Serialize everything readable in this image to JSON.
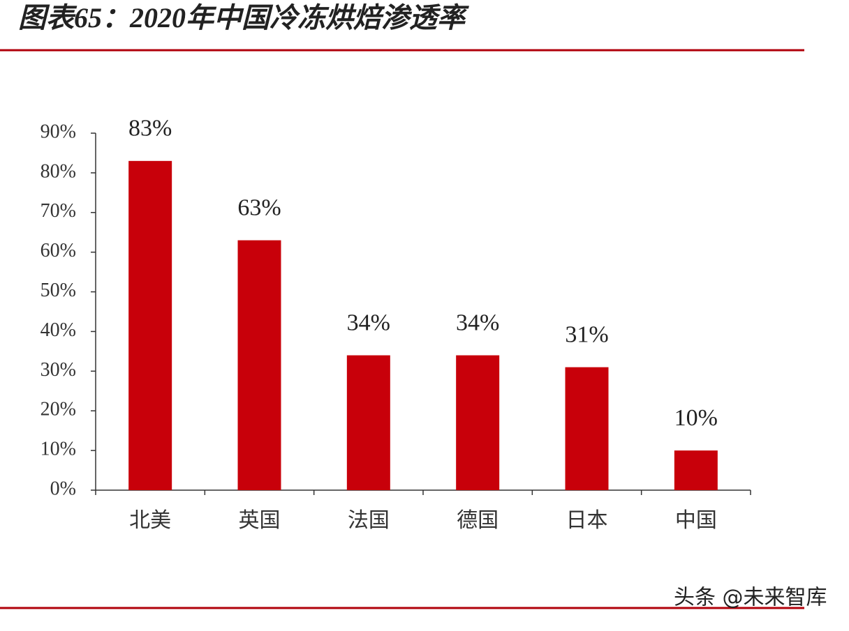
{
  "chart_data": {
    "type": "bar",
    "title": "图表65：2020年中国冷冻烘焙渗透率",
    "categories": [
      "北美",
      "英国",
      "法国",
      "德国",
      "日本",
      "中国"
    ],
    "values": [
      83,
      63,
      34,
      34,
      31,
      10
    ],
    "value_labels": [
      "83%",
      "63%",
      "34%",
      "34%",
      "31%",
      "10%"
    ],
    "color": "#c8000a",
    "ylim": [
      0,
      90
    ],
    "yticks": [
      {
        "value": 0,
        "label": "0%"
      },
      {
        "value": 10,
        "label": "10%"
      },
      {
        "value": 20,
        "label": "20%"
      },
      {
        "value": 30,
        "label": "30%"
      },
      {
        "value": 40,
        "label": "40%"
      },
      {
        "value": 50,
        "label": "50%"
      },
      {
        "value": 60,
        "label": "60%"
      },
      {
        "value": 70,
        "label": "70%"
      },
      {
        "value": 80,
        "label": "80%"
      },
      {
        "value": 90,
        "label": "90%"
      }
    ],
    "grid": false,
    "watermark": "头条 @未来智库"
  }
}
